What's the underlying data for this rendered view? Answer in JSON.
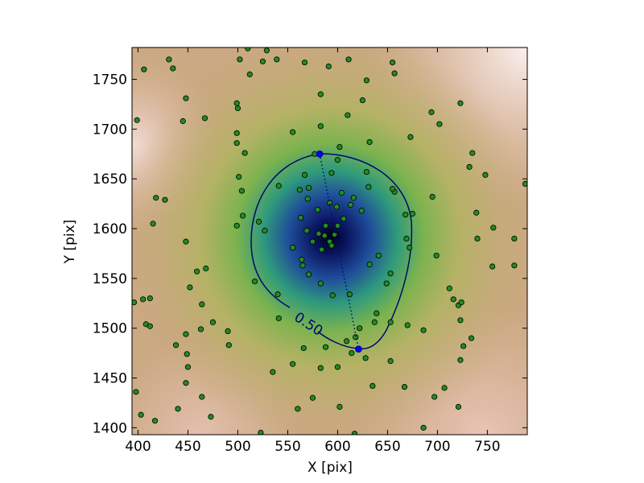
{
  "chart_data": {
    "type": "scatter",
    "xlabel": "X [pix]",
    "ylabel": "Y [pix]",
    "xlim": [
      394,
      790
    ],
    "ylim": [
      1393,
      1782
    ],
    "xticks": [
      400,
      450,
      500,
      550,
      600,
      650,
      700,
      750
    ],
    "yticks": [
      1400,
      1450,
      1500,
      1550,
      1600,
      1650,
      1700,
      1750
    ],
    "color": "#228b22",
    "x": [
      406,
      431,
      435,
      448,
      445,
      467,
      399,
      502,
      525,
      539,
      512,
      529,
      510,
      567,
      591,
      611,
      583,
      629,
      625,
      655,
      657,
      499,
      500,
      499,
      499,
      507,
      501,
      504,
      505,
      499,
      521,
      527,
      541,
      555,
      583,
      610,
      632,
      694,
      702,
      673,
      723,
      735,
      732,
      748,
      788,
      695,
      675,
      668,
      657,
      669,
      672,
      699,
      721,
      777,
      756,
      740,
      739,
      712,
      716,
      723,
      734,
      723,
      667,
      670,
      637,
      628,
      609,
      600,
      575,
      560,
      535,
      523,
      617,
      635,
      653,
      653,
      602,
      418,
      427,
      415,
      448,
      459,
      468,
      452,
      464,
      396,
      405,
      412,
      408,
      412,
      438,
      448,
      463,
      449,
      450,
      448,
      464,
      475,
      490,
      491,
      473,
      417,
      398,
      403,
      440,
      517,
      540,
      541,
      555,
      566,
      583,
      588,
      697,
      707,
      726,
      724,
      755,
      777,
      686,
      721,
      686,
      587,
      592,
      581,
      588,
      594,
      597,
      600,
      569,
      563,
      570,
      580,
      599,
      613,
      616,
      631,
      624,
      606,
      604,
      592,
      571,
      564,
      555,
      565,
      583,
      595,
      612,
      632,
      641,
      653,
      618,
      622,
      614,
      649,
      639,
      562,
      571,
      567,
      594,
      600,
      602,
      577,
      629,
      655,
      584,
      575
    ],
    "y": [
      1760,
      1770,
      1761,
      1731,
      1708,
      1711,
      1709,
      1770,
      1768,
      1770,
      1755,
      1779,
      1781,
      1767,
      1763,
      1770,
      1735,
      1749,
      1729,
      1767,
      1756,
      1726,
      1721,
      1696,
      1686,
      1676,
      1652,
      1638,
      1613,
      1603,
      1607,
      1598,
      1643,
      1697,
      1703,
      1714,
      1687,
      1717,
      1705,
      1692,
      1726,
      1676,
      1662,
      1654,
      1645,
      1632,
      1615,
      1614,
      1637,
      1590,
      1581,
      1573,
      1523,
      1590,
      1601,
      1590,
      1616,
      1540,
      1529,
      1508,
      1490,
      1468,
      1441,
      1503,
      1506,
      1470,
      1487,
      1461,
      1430,
      1419,
      1456,
      1395,
      1394,
      1442,
      1467,
      1506,
      1421,
      1631,
      1629,
      1605,
      1587,
      1557,
      1560,
      1541,
      1524,
      1526,
      1529,
      1530,
      1504,
      1502,
      1483,
      1494,
      1499,
      1474,
      1461,
      1445,
      1431,
      1506,
      1497,
      1483,
      1411,
      1407,
      1436,
      1413,
      1419,
      1547,
      1534,
      1510,
      1464,
      1480,
      1460,
      1481,
      1431,
      1440,
      1482,
      1526,
      1562,
      1563,
      1400,
      1421,
      1498,
      1593,
      1587,
      1595,
      1603,
      1583,
      1594,
      1603,
      1598,
      1611,
      1630,
      1619,
      1622,
      1624,
      1631,
      1642,
      1618,
      1610,
      1636,
      1626,
      1554,
      1569,
      1581,
      1563,
      1545,
      1533,
      1534,
      1564,
      1573,
      1555,
      1491,
      1500,
      1475,
      1545,
      1515,
      1639,
      1641,
      1654,
      1656,
      1669,
      1682,
      1675,
      1657,
      1640,
      1579,
      1587
    ],
    "endpoints": {
      "color": "#0000ff",
      "x": [
        582,
        621
      ],
      "y": [
        1675,
        1479
      ]
    },
    "contour_label": "0.50"
  }
}
